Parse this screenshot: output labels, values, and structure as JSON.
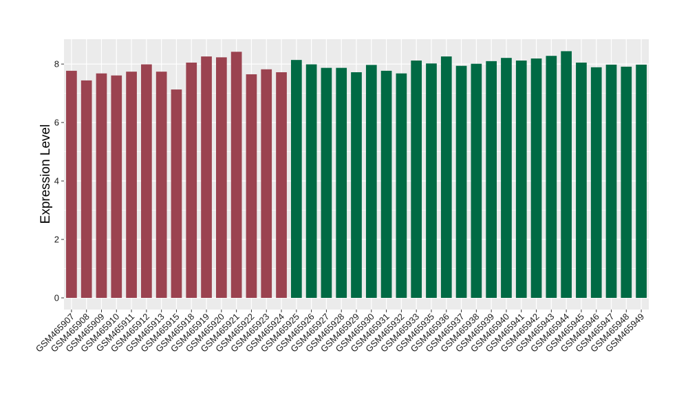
{
  "chart_data": {
    "type": "bar",
    "title": "",
    "xlabel": "",
    "ylabel": "Expression Level",
    "ylim": [
      -0.4,
      8.85
    ],
    "yticks": [
      0,
      2,
      4,
      6,
      8
    ],
    "grid": true,
    "legend": "none",
    "colors": {
      "group1": "#9b4350",
      "group2": "#006a44",
      "panel": "#ebebeb",
      "grid": "#ffffff"
    },
    "categories": [
      "GSM465907",
      "GSM465908",
      "GSM465909",
      "GSM465910",
      "GSM465911",
      "GSM465912",
      "GSM465913",
      "GSM465915",
      "GSM465918",
      "GSM465919",
      "GSM465920",
      "GSM465921",
      "GSM465922",
      "GSM465923",
      "GSM465924",
      "GSM465925",
      "GSM465926",
      "GSM465927",
      "GSM465928",
      "GSM465929",
      "GSM465930",
      "GSM465931",
      "GSM465932",
      "GSM465933",
      "GSM465935",
      "GSM465936",
      "GSM465937",
      "GSM465938",
      "GSM465939",
      "GSM465940",
      "GSM465941",
      "GSM465942",
      "GSM465943",
      "GSM465944",
      "GSM465945",
      "GSM465946",
      "GSM465947",
      "GSM465948",
      "GSM465949"
    ],
    "values": [
      7.77,
      7.44,
      7.68,
      7.61,
      7.74,
      7.99,
      7.74,
      7.13,
      8.05,
      8.26,
      8.23,
      8.42,
      7.65,
      7.82,
      7.72,
      8.14,
      7.99,
      7.87,
      7.87,
      7.72,
      7.97,
      7.77,
      7.68,
      8.12,
      8.02,
      8.26,
      7.94,
      8.01,
      8.1,
      8.21,
      8.12,
      8.19,
      8.28,
      8.44,
      8.05,
      7.89,
      7.98,
      7.91,
      7.98
    ],
    "groups": [
      1,
      1,
      1,
      1,
      1,
      1,
      1,
      1,
      1,
      1,
      1,
      1,
      1,
      1,
      1,
      2,
      2,
      2,
      2,
      2,
      2,
      2,
      2,
      2,
      2,
      2,
      2,
      2,
      2,
      2,
      2,
      2,
      2,
      2,
      2,
      2,
      2,
      2,
      2
    ]
  }
}
